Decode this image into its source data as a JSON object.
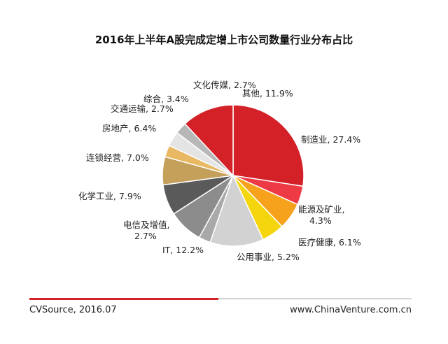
{
  "chart_data": {
    "type": "pie",
    "title": "2016年上半年A股完成定增上市公司数量行业分布占比",
    "slices": [
      {
        "label": "制造业",
        "value": 27.4,
        "text": "制造业, 27.4%",
        "color": "#d42027"
      },
      {
        "label": "能源及矿业",
        "value": 4.3,
        "text": "能源及矿业, 4.3%",
        "color": "#ee3a45"
      },
      {
        "label": "医疗健康",
        "value": 6.1,
        "text": "医疗健康, 6.1%",
        "color": "#f6a21c"
      },
      {
        "label": "公用事业",
        "value": 5.2,
        "text": "公用事业, 5.2%",
        "color": "#f5d60e"
      },
      {
        "label": "IT",
        "value": 12.2,
        "text": "IT, 12.2%",
        "color": "#d2d2d2"
      },
      {
        "label": "电信及增值",
        "value": 2.7,
        "text": "电信及增值, 2.7%",
        "color": "#a9a9a9"
      },
      {
        "label": "化学工业",
        "value": 7.9,
        "text": "化学工业, 7.9%",
        "color": "#8c8c8c"
      },
      {
        "label": "连锁经营",
        "value": 7.0,
        "text": "连锁经营, 7.0%",
        "color": "#5a5a5a"
      },
      {
        "label": "房地产",
        "value": 6.4,
        "text": "房地产, 6.4%",
        "color": "#c4a05a"
      },
      {
        "label": "交通运输",
        "value": 2.7,
        "text": "交通运输, 2.7%",
        "color": "#e8b863"
      },
      {
        "label": "综合",
        "value": 3.4,
        "text": "综合, 3.4%",
        "color": "#e4e4e4"
      },
      {
        "label": "文化传媒",
        "value": 2.7,
        "text": "文化传媒, 2.7%",
        "color": "#b7b7b7"
      },
      {
        "label": "其他",
        "value": 11.9,
        "text": "其他, 11.9%",
        "color": "#d42027"
      }
    ]
  },
  "footer": {
    "source": "CVSource, 2016.07",
    "site": "www.ChinaVenture.com.cn"
  }
}
